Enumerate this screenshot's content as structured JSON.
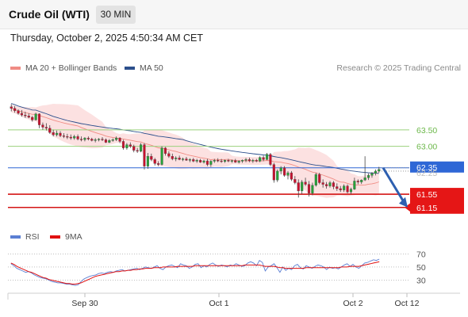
{
  "header": {
    "title": "Crude Oil (WTI)",
    "interval": "30 MIN"
  },
  "datetime": "Thursday, October 2, 2025 4:50:34 AM CET",
  "legend": {
    "price": [
      {
        "label": "MA 20 + Bollinger Bands",
        "color": "#f08c84"
      },
      {
        "label": "MA 50",
        "color": "#2c4f8c"
      }
    ],
    "rsi": [
      {
        "label": "RSI",
        "color": "#5b7fd3"
      },
      {
        "label": "9MA",
        "color": "#e01010"
      }
    ]
  },
  "source": "Research © 2025 Trading Central",
  "chart_data": {
    "type": "line",
    "x_ticks": [
      "Sep 30",
      "Oct 1",
      "Oct 2",
      "Oct 12"
    ],
    "current_price": "62.35",
    "current_price_hidden": "62.25",
    "levels": [
      {
        "value": 63.5,
        "label": "63.50",
        "style": "resistance"
      },
      {
        "value": 63.0,
        "label": "63.00",
        "style": "resistance"
      },
      {
        "value": 62.35,
        "label": "62.35",
        "style": "current"
      },
      {
        "value": 61.55,
        "label": "61.55",
        "style": "support"
      },
      {
        "value": 61.15,
        "label": "61.15",
        "style": "support"
      }
    ],
    "ylim": [
      61.0,
      64.6
    ],
    "forecast": {
      "from": 62.35,
      "to": 61.15,
      "direction": "down"
    },
    "candles": [
      [
        64.2,
        64.28,
        64.06,
        64.15
      ],
      [
        64.15,
        64.22,
        64.02,
        64.08
      ],
      [
        64.08,
        64.12,
        63.96,
        64.0
      ],
      [
        64.0,
        64.1,
        63.9,
        63.95
      ],
      [
        63.95,
        64.05,
        63.86,
        63.92
      ],
      [
        63.92,
        64.0,
        63.85,
        63.88
      ],
      [
        63.88,
        63.92,
        63.75,
        63.8
      ],
      [
        63.8,
        64.02,
        63.78,
        63.98
      ],
      [
        63.98,
        64.0,
        63.55,
        63.65
      ],
      [
        63.65,
        63.72,
        63.5,
        63.58
      ],
      [
        63.58,
        63.7,
        63.48,
        63.55
      ],
      [
        63.55,
        63.64,
        63.38,
        63.42
      ],
      [
        63.42,
        63.5,
        63.3,
        63.35
      ],
      [
        63.35,
        63.48,
        63.3,
        63.4
      ],
      [
        63.4,
        63.46,
        63.28,
        63.32
      ],
      [
        63.32,
        63.4,
        63.25,
        63.3
      ],
      [
        63.3,
        63.38,
        63.22,
        63.28
      ],
      [
        63.28,
        63.36,
        63.2,
        63.25
      ],
      [
        63.25,
        63.35,
        63.2,
        63.3
      ],
      [
        63.3,
        63.36,
        63.18,
        63.22
      ],
      [
        63.22,
        63.3,
        63.15,
        63.2
      ],
      [
        63.2,
        63.28,
        63.15,
        63.25
      ],
      [
        63.25,
        63.3,
        63.18,
        63.22
      ],
      [
        63.22,
        63.26,
        63.15,
        63.18
      ],
      [
        63.18,
        63.25,
        63.12,
        63.2
      ],
      [
        63.2,
        63.25,
        63.15,
        63.22
      ],
      [
        63.22,
        63.28,
        63.16,
        63.2
      ],
      [
        63.2,
        63.24,
        63.1,
        63.12
      ],
      [
        63.12,
        63.22,
        63.1,
        63.18
      ],
      [
        63.18,
        63.24,
        63.14,
        63.2
      ],
      [
        63.2,
        63.3,
        63.16,
        63.25
      ],
      [
        63.25,
        63.28,
        63.1,
        63.15
      ],
      [
        63.15,
        63.2,
        62.9,
        62.95
      ],
      [
        62.95,
        63.1,
        62.9,
        63.05
      ],
      [
        63.05,
        63.12,
        62.95,
        63.0
      ],
      [
        63.0,
        63.05,
        62.82,
        62.88
      ],
      [
        62.88,
        62.95,
        62.8,
        62.85
      ],
      [
        62.85,
        63.1,
        62.82,
        63.05
      ],
      [
        63.05,
        63.1,
        62.3,
        62.4
      ],
      [
        62.4,
        62.8,
        62.32,
        62.7
      ],
      [
        62.7,
        62.78,
        62.55,
        62.6
      ],
      [
        62.6,
        62.65,
        62.42,
        62.48
      ],
      [
        62.48,
        62.55,
        62.4,
        62.45
      ],
      [
        62.45,
        63.0,
        62.42,
        62.95
      ],
      [
        62.95,
        62.98,
        62.72,
        62.78
      ],
      [
        62.78,
        62.85,
        62.65,
        62.7
      ],
      [
        62.7,
        62.78,
        62.58,
        62.62
      ],
      [
        62.62,
        62.7,
        62.55,
        62.65
      ],
      [
        62.65,
        62.72,
        62.58,
        62.6
      ],
      [
        62.6,
        62.66,
        62.55,
        62.62
      ],
      [
        62.62,
        62.68,
        62.56,
        62.58
      ],
      [
        62.58,
        62.64,
        62.52,
        62.6
      ],
      [
        62.6,
        62.65,
        62.52,
        62.55
      ],
      [
        62.55,
        62.62,
        62.5,
        62.58
      ],
      [
        62.58,
        62.62,
        62.5,
        62.52
      ],
      [
        62.52,
        62.6,
        62.48,
        62.56
      ],
      [
        62.56,
        62.62,
        62.4,
        62.45
      ],
      [
        62.45,
        62.58,
        62.38,
        62.55
      ],
      [
        62.55,
        62.62,
        62.5,
        62.58
      ],
      [
        62.58,
        62.64,
        62.52,
        62.56
      ],
      [
        62.56,
        62.62,
        62.5,
        62.54
      ],
      [
        62.54,
        62.6,
        62.5,
        62.58
      ],
      [
        62.58,
        62.62,
        62.52,
        62.55
      ],
      [
        62.55,
        62.6,
        62.5,
        62.57
      ],
      [
        62.57,
        62.62,
        62.5,
        62.52
      ],
      [
        62.52,
        62.58,
        62.48,
        62.55
      ],
      [
        62.55,
        62.6,
        62.5,
        62.58
      ],
      [
        62.58,
        62.65,
        62.52,
        62.6
      ],
      [
        62.6,
        62.66,
        62.52,
        62.56
      ],
      [
        62.56,
        62.62,
        62.5,
        62.58
      ],
      [
        62.58,
        62.62,
        62.52,
        62.55
      ],
      [
        62.55,
        62.7,
        62.52,
        62.66
      ],
      [
        62.66,
        62.72,
        62.55,
        62.6
      ],
      [
        62.6,
        62.8,
        62.58,
        62.76
      ],
      [
        62.76,
        62.8,
        62.4,
        62.45
      ],
      [
        62.45,
        62.5,
        61.9,
        61.98
      ],
      [
        61.98,
        62.3,
        61.92,
        62.25
      ],
      [
        62.25,
        62.4,
        62.15,
        62.35
      ],
      [
        62.35,
        62.4,
        62.08,
        62.12
      ],
      [
        62.12,
        62.25,
        62.0,
        62.2
      ],
      [
        62.2,
        62.25,
        61.95,
        62.0
      ],
      [
        62.0,
        62.1,
        61.85,
        61.9
      ],
      [
        61.9,
        62.0,
        61.45,
        61.65
      ],
      [
        61.65,
        61.98,
        61.55,
        61.92
      ],
      [
        61.92,
        62.05,
        61.8,
        61.85
      ],
      [
        61.85,
        61.95,
        61.48,
        61.58
      ],
      [
        61.58,
        61.9,
        61.52,
        61.82
      ],
      [
        61.82,
        62.2,
        61.78,
        62.15
      ],
      [
        62.15,
        62.2,
        61.85,
        61.9
      ],
      [
        61.9,
        62.0,
        61.75,
        61.85
      ],
      [
        61.85,
        61.92,
        61.72,
        61.8
      ],
      [
        61.8,
        61.95,
        61.75,
        61.9
      ],
      [
        61.9,
        61.95,
        61.7,
        61.78
      ],
      [
        61.78,
        61.88,
        61.65,
        61.72
      ],
      [
        61.72,
        61.8,
        61.62,
        61.68
      ],
      [
        61.68,
        61.85,
        61.62,
        61.8
      ],
      [
        61.8,
        61.85,
        61.58,
        61.62
      ],
      [
        61.62,
        61.75,
        61.55,
        61.7
      ],
      [
        61.7,
        62.05,
        61.68,
        61.95
      ],
      [
        61.95,
        62.0,
        61.85,
        61.92
      ],
      [
        61.92,
        62.0,
        61.86,
        61.98
      ],
      [
        61.98,
        62.7,
        61.95,
        62.05
      ],
      [
        62.05,
        62.18,
        61.98,
        62.12
      ],
      [
        62.12,
        62.22,
        62.05,
        62.18
      ],
      [
        62.18,
        62.3,
        62.12,
        62.25
      ],
      [
        62.25,
        62.38,
        62.2,
        62.3
      ]
    ],
    "rsi_ylim": [
      15,
      80
    ],
    "rsi_levels": [
      70,
      50,
      30
    ],
    "rsi": [
      55,
      52,
      48,
      46,
      44,
      42,
      43,
      41,
      38,
      36,
      34,
      33,
      32,
      30,
      28,
      27,
      26,
      26,
      25,
      24,
      24,
      23,
      22,
      23,
      28,
      32,
      34,
      36,
      37,
      38,
      40,
      41,
      40,
      42,
      43,
      42,
      44,
      45,
      46,
      44,
      45,
      46,
      47,
      48,
      46,
      48,
      50,
      49,
      48,
      50,
      52,
      48,
      46,
      50,
      52,
      53,
      51,
      49,
      55,
      53,
      52,
      48,
      50,
      54,
      55,
      49,
      52,
      50,
      54,
      56,
      53,
      51,
      53,
      52,
      50,
      53,
      52,
      55,
      53,
      51,
      52,
      56,
      58,
      56,
      52,
      60,
      57,
      44,
      50,
      52,
      55,
      49,
      42,
      50,
      45,
      48,
      46,
      52,
      54,
      49,
      47,
      52,
      50,
      48,
      51,
      53,
      52,
      50,
      46,
      50,
      48,
      49,
      47,
      50,
      53,
      55,
      51,
      54,
      50,
      48,
      52,
      56,
      57,
      59,
      61,
      60,
      62
    ],
    "rsi_ma": [
      56,
      54,
      51,
      49,
      47,
      45,
      43,
      42,
      40,
      38,
      36,
      34,
      33,
      31,
      30,
      29,
      28,
      27,
      26,
      25,
      25,
      24,
      24,
      25,
      26,
      28,
      30,
      32,
      34,
      36,
      37,
      38,
      39,
      40,
      41,
      42,
      43,
      43,
      44,
      44,
      45,
      45,
      46,
      46,
      47,
      47,
      48,
      48,
      48,
      49,
      49,
      49,
      50,
      50,
      50,
      50,
      50,
      51,
      51,
      51,
      51,
      51,
      51,
      52,
      52,
      52,
      52,
      52,
      52,
      52,
      52,
      52,
      52,
      52,
      52,
      52,
      52,
      52,
      52,
      52,
      53,
      53,
      53,
      53,
      53,
      53,
      52,
      51,
      51,
      51,
      51,
      50,
      49,
      49,
      48,
      48,
      48,
      48,
      48,
      48,
      48,
      49,
      49,
      49,
      49,
      49,
      49,
      49,
      49,
      49,
      49,
      49,
      49,
      50,
      50,
      50,
      51,
      51,
      51,
      51,
      52,
      53,
      54,
      55,
      56,
      57,
      58
    ]
  }
}
